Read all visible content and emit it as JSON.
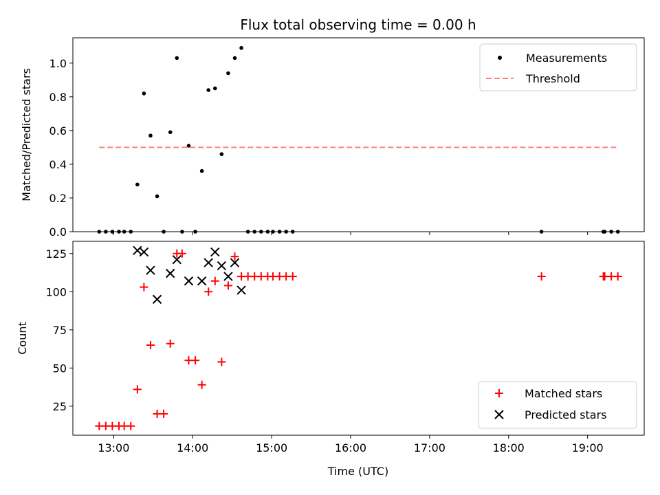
{
  "figure": {
    "title": "Flux total observing time = 0.00 h",
    "xlabel": "Time (UTC)"
  },
  "chart_data": [
    {
      "type": "scatter",
      "ylabel": "Matched/Predicted stars",
      "xlim": [
        "12:29",
        "19:43"
      ],
      "ylim": [
        0,
        1.15
      ],
      "yticks": [
        0.0,
        0.2,
        0.4,
        0.6,
        0.8,
        1.0
      ],
      "ytick_labels": [
        "0.0",
        "0.2",
        "0.4",
        "0.6",
        "0.8",
        "1.0"
      ],
      "legend_position": "upper right",
      "series": [
        {
          "name": "Measurements",
          "kind": "scatter",
          "marker": "dot",
          "color": "#000000",
          "x": [
            "12:49",
            "12:54",
            "12:59",
            "13:04",
            "13:08",
            "13:13",
            "13:18",
            "13:23",
            "13:28",
            "13:33",
            "13:38",
            "13:43",
            "13:48",
            "13:52",
            "13:57",
            "14:02",
            "14:07",
            "14:12",
            "14:17",
            "14:22",
            "14:27",
            "14:32",
            "14:37",
            "14:42",
            "14:47",
            "14:52",
            "14:57",
            "15:01",
            "15:06",
            "15:11",
            "15:16",
            "18:25",
            "19:12",
            "19:13",
            "19:18",
            "19:23"
          ],
          "y": [
            0,
            0,
            0,
            0,
            0,
            0,
            0.28,
            0.82,
            0.57,
            0.21,
            0,
            0.59,
            1.03,
            0,
            0.51,
            0,
            0.36,
            0.84,
            0.85,
            0.46,
            0.94,
            1.03,
            1.09,
            0,
            0,
            0,
            0,
            0,
            0,
            0,
            0,
            0,
            0,
            0,
            0,
            0
          ]
        },
        {
          "name": "Threshold",
          "kind": "line",
          "style": "dashed",
          "color": "#ff8080",
          "x": [
            "12:49",
            "19:23"
          ],
          "y": [
            0.5,
            0.5
          ]
        }
      ]
    },
    {
      "type": "scatter",
      "ylabel": "Count",
      "xlim": [
        "12:29",
        "19:43"
      ],
      "ylim": [
        6,
        133
      ],
      "yticks": [
        25,
        50,
        75,
        100,
        125
      ],
      "ytick_labels": [
        "25",
        "50",
        "75",
        "100",
        "125"
      ],
      "xticks": [
        "13:00",
        "14:00",
        "15:00",
        "16:00",
        "17:00",
        "18:00",
        "19:00"
      ],
      "xtick_labels": [
        "13:00",
        "14:00",
        "15:00",
        "16:00",
        "17:00",
        "18:00",
        "19:00"
      ],
      "legend_position": "lower right",
      "series": [
        {
          "name": "Matched stars",
          "kind": "scatter",
          "marker": "plus",
          "color": "#ff0000",
          "x": [
            "12:49",
            "12:54",
            "12:59",
            "13:04",
            "13:08",
            "13:13",
            "13:18",
            "13:23",
            "13:28",
            "13:33",
            "13:38",
            "13:43",
            "13:48",
            "13:52",
            "13:57",
            "14:02",
            "14:07",
            "14:12",
            "14:17",
            "14:22",
            "14:27",
            "14:32",
            "14:37",
            "14:42",
            "14:47",
            "14:52",
            "14:57",
            "15:01",
            "15:06",
            "15:11",
            "15:16",
            "18:25",
            "19:12",
            "19:13",
            "19:18",
            "19:23"
          ],
          "y": [
            12,
            12,
            12,
            12,
            12,
            12,
            36,
            103,
            65,
            20,
            20,
            66,
            125,
            125,
            55,
            55,
            39,
            100,
            107,
            54,
            104,
            123,
            110,
            110,
            110,
            110,
            110,
            110,
            110,
            110,
            110,
            110,
            110,
            110,
            110,
            110
          ]
        },
        {
          "name": "Predicted stars",
          "kind": "scatter",
          "marker": "x",
          "color": "#000000",
          "x": [
            "13:18",
            "13:23",
            "13:28",
            "13:33",
            "13:43",
            "13:48",
            "13:57",
            "14:07",
            "14:12",
            "14:17",
            "14:22",
            "14:27",
            "14:32",
            "14:37"
          ],
          "y": [
            127,
            126,
            114,
            95,
            112,
            121,
            107,
            107,
            119,
            126,
            117,
            110,
            119,
            101
          ]
        }
      ]
    }
  ]
}
